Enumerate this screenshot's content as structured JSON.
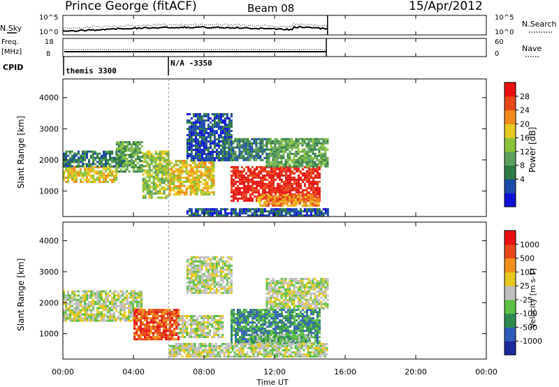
{
  "header": {
    "station": "Prince George (fitACF)",
    "beam": "Beam 08",
    "date": "15/Apr/2012"
  },
  "panels": {
    "nsky": {
      "left_label": "N.Sky",
      "right_label": "N.Search",
      "left_ticks": [
        "10^5",
        "10^0"
      ],
      "right_ticks": [
        "10^5",
        "10^0"
      ]
    },
    "freq": {
      "left_label_1": "Freq.",
      "left_label_2": "[MHz]",
      "right_label": "Nave",
      "left_ticks": [
        "18",
        "8"
      ],
      "right_ticks": [
        "60",
        "0"
      ]
    },
    "cpid": {
      "label": "CPID",
      "segments": [
        {
          "name": "themis 3300",
          "start_hour": 0
        },
        {
          "name": "N/A -3350",
          "start_hour": 6
        }
      ]
    }
  },
  "chart_data": [
    {
      "type": "heatmap",
      "name": "power",
      "ylabel": "Slant Range [km]",
      "yticks": [
        1000,
        2000,
        3000,
        4000
      ],
      "ylim": [
        180,
        4600
      ],
      "xlim": [
        0,
        24
      ],
      "colorbar_label": "Power [dB]",
      "colorbar_ticks": [
        "28",
        "24",
        "20",
        "16",
        "12",
        "8",
        "4"
      ],
      "colors": [
        "#1010d8",
        "#1c4aa8",
        "#2e7a44",
        "#5ca05c",
        "#8ac23a",
        "#e6c81e",
        "#f08a1c",
        "#e84818",
        "#e81010"
      ],
      "regions": [
        {
          "x0": 0.0,
          "x1": 3.0,
          "y0": 1300,
          "y1": 1800,
          "level": 5
        },
        {
          "x0": 0.0,
          "x1": 3.5,
          "y0": 1800,
          "y1": 2300,
          "level": 2
        },
        {
          "x0": 3.0,
          "x1": 4.5,
          "y0": 1600,
          "y1": 2600,
          "level": 3
        },
        {
          "x0": 4.5,
          "x1": 6.0,
          "y0": 800,
          "y1": 2300,
          "level": 4
        },
        {
          "x0": 6.0,
          "x1": 8.5,
          "y0": 900,
          "y1": 2000,
          "level": 5
        },
        {
          "x0": 7.0,
          "x1": 9.5,
          "y0": 2000,
          "y1": 3500,
          "level": 1
        },
        {
          "x0": 9.0,
          "x1": 11.5,
          "y0": 2000,
          "y1": 2700,
          "level": 2
        },
        {
          "x0": 9.5,
          "x1": 14.5,
          "y0": 700,
          "y1": 1800,
          "level": 8
        },
        {
          "x0": 11.5,
          "x1": 15.0,
          "y0": 1800,
          "y1": 2700,
          "level": 3
        },
        {
          "x0": 11.0,
          "x1": 14.5,
          "y0": 500,
          "y1": 900,
          "level": 6
        },
        {
          "x0": 7.0,
          "x1": 15.0,
          "y0": 200,
          "y1": 450,
          "level": 1
        }
      ]
    },
    {
      "type": "heatmap",
      "name": "velocity",
      "ylabel": "Slant Range [km]",
      "yticks": [
        1000,
        2000,
        3000,
        4000
      ],
      "ylim": [
        180,
        4600
      ],
      "xlim": [
        0,
        24
      ],
      "colorbar_label": "Velocity [m s-1]",
      "colorbar_ticks": [
        "1000",
        "500",
        "100",
        "25",
        "-25",
        "-100",
        "-500",
        "-1000"
      ],
      "colors": [
        "#1a2a9c",
        "#2e5cb8",
        "#2e8a50",
        "#5cc044",
        "#bfbfbf",
        "#e6c81e",
        "#f0901c",
        "#e84818",
        "#e81010"
      ],
      "regions": [
        {
          "x0": 0.0,
          "x1": 4.5,
          "y0": 1400,
          "y1": 2400,
          "level": 4
        },
        {
          "x0": 4.0,
          "x1": 6.5,
          "y0": 800,
          "y1": 1800,
          "level": 7
        },
        {
          "x0": 6.5,
          "x1": 9.0,
          "y0": 900,
          "y1": 1600,
          "level": 4
        },
        {
          "x0": 7.0,
          "x1": 9.5,
          "y0": 2300,
          "y1": 3500,
          "level": 4
        },
        {
          "x0": 9.5,
          "x1": 14.5,
          "y0": 700,
          "y1": 1800,
          "level": 2
        },
        {
          "x0": 11.5,
          "x1": 15.0,
          "y0": 1800,
          "y1": 2800,
          "level": 4
        },
        {
          "x0": 10.5,
          "x1": 14.0,
          "y0": 700,
          "y1": 1000,
          "level": 3
        },
        {
          "x0": 6.0,
          "x1": 15.0,
          "y0": 250,
          "y1": 700,
          "level": 4
        }
      ]
    }
  ],
  "xaxis": {
    "label": "Time UT",
    "ticks": [
      "00:00",
      "04:00",
      "08:00",
      "12:00",
      "16:00",
      "20:00",
      "00:00"
    ]
  }
}
